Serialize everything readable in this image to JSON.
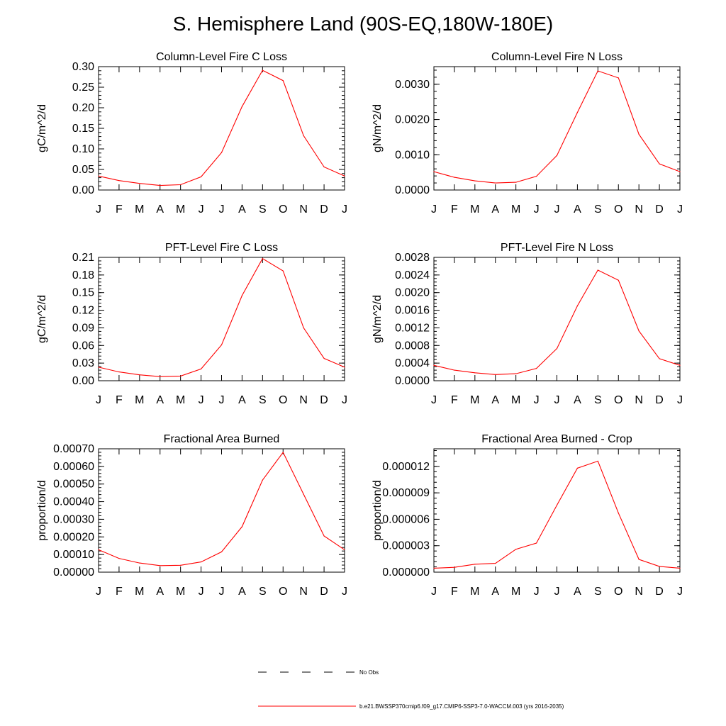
{
  "title": "S. Hemisphere Land (90S-EQ,180W-180E)",
  "colors": {
    "series": "#ff0000",
    "axis": "#000000",
    "obs": "#000000"
  },
  "legend": {
    "entries": [
      {
        "label": "No Obs",
        "style": "dashed",
        "color": "#000000"
      },
      {
        "label": "b.e21.BWSSP370cmip6.f09_g17.CMIP6-SSP3-7.0-WACCM.003 (yrs 2016-2035)",
        "style": "solid",
        "color": "#ff0000"
      }
    ]
  },
  "chart_data": [
    {
      "type": "line",
      "title": "Column-Level Fire C Loss",
      "xlabel": "",
      "ylabel": "gC/m^2/d",
      "categories": [
        "J",
        "F",
        "M",
        "A",
        "M",
        "J",
        "J",
        "A",
        "S",
        "O",
        "N",
        "D",
        "J"
      ],
      "ylim": [
        0,
        0.3
      ],
      "yticks": [
        "0.00",
        "0.05",
        "0.10",
        "0.15",
        "0.20",
        "0.25",
        "0.30"
      ],
      "grid": false,
      "series": [
        {
          "values": [
            0.034,
            0.023,
            0.016,
            0.011,
            0.013,
            0.032,
            0.091,
            0.203,
            0.291,
            0.266,
            0.132,
            0.056,
            0.034
          ]
        }
      ]
    },
    {
      "type": "line",
      "title": "Column-Level Fire N Loss",
      "xlabel": "",
      "ylabel": "gN/m^2/d",
      "categories": [
        "J",
        "F",
        "M",
        "A",
        "M",
        "J",
        "J",
        "A",
        "S",
        "O",
        "N",
        "D",
        "J"
      ],
      "ylim": [
        0,
        0.0035
      ],
      "yticks": [
        "0.0000",
        "0.0010",
        "0.0020",
        "0.0030"
      ],
      "grid": false,
      "series": [
        {
          "values": [
            0.00052,
            0.00036,
            0.00026,
            0.0002,
            0.00022,
            0.00039,
            0.00098,
            0.0022,
            0.00338,
            0.00318,
            0.00158,
            0.00074,
            0.00052
          ]
        }
      ]
    },
    {
      "type": "line",
      "title": "PFT-Level Fire C Loss",
      "xlabel": "",
      "ylabel": "gC/m^2/d",
      "categories": [
        "J",
        "F",
        "M",
        "A",
        "M",
        "J",
        "J",
        "A",
        "S",
        "O",
        "N",
        "D",
        "J"
      ],
      "ylim": [
        0,
        0.21
      ],
      "yticks": [
        "0.00",
        "0.03",
        "0.06",
        "0.09",
        "0.12",
        "0.15",
        "0.18",
        "0.21"
      ],
      "grid": false,
      "series": [
        {
          "values": [
            0.023,
            0.015,
            0.01,
            0.007,
            0.008,
            0.02,
            0.061,
            0.145,
            0.208,
            0.187,
            0.09,
            0.038,
            0.023
          ]
        }
      ]
    },
    {
      "type": "line",
      "title": "PFT-Level Fire N Loss",
      "xlabel": "",
      "ylabel": "gN/m^2/d",
      "categories": [
        "J",
        "F",
        "M",
        "A",
        "M",
        "J",
        "J",
        "A",
        "S",
        "O",
        "N",
        "D",
        "J"
      ],
      "ylim": [
        0,
        0.0028
      ],
      "yticks": [
        "0.0000",
        "0.0004",
        "0.0008",
        "0.0012",
        "0.0016",
        "0.0020",
        "0.0024",
        "0.0028"
      ],
      "grid": false,
      "series": [
        {
          "values": [
            0.00035,
            0.00024,
            0.00018,
            0.00014,
            0.00016,
            0.00028,
            0.00073,
            0.0017,
            0.00251,
            0.00228,
            0.00113,
            0.0005,
            0.00035
          ]
        }
      ]
    },
    {
      "type": "line",
      "title": "Fractional Area Burned",
      "xlabel": "",
      "ylabel": "proportion/d",
      "categories": [
        "J",
        "F",
        "M",
        "A",
        "M",
        "J",
        "J",
        "A",
        "S",
        "O",
        "N",
        "D",
        "J"
      ],
      "ylim": [
        0,
        0.0007
      ],
      "yticks": [
        "0.00000",
        "0.00010",
        "0.00020",
        "0.00030",
        "0.00040",
        "0.00050",
        "0.00060",
        "0.00070"
      ],
      "grid": false,
      "series": [
        {
          "values": [
            0.000127,
            7.8e-05,
            5.2e-05,
            3.7e-05,
            3.9e-05,
            5.8e-05,
            0.000115,
            0.000258,
            0.000522,
            0.00068,
            0.000442,
            0.000205,
            0.000127
          ]
        }
      ]
    },
    {
      "type": "line",
      "title": "Fractional Area Burned - Crop",
      "xlabel": "",
      "ylabel": "proportion/d",
      "categories": [
        "J",
        "F",
        "M",
        "A",
        "M",
        "J",
        "J",
        "A",
        "S",
        "O",
        "N",
        "D",
        "J"
      ],
      "ylim": [
        0,
        1.4e-05
      ],
      "yticks": [
        "0.000000",
        "0.000003",
        "0.000006",
        "0.000009",
        "0.000012"
      ],
      "grid": false,
      "series": [
        {
          "values": [
            4.5e-07,
            5.5e-07,
            9e-07,
            1e-06,
            2.6e-06,
            3.3e-06,
            7.6e-06,
            1.18e-05,
            1.26e-05,
            6.7e-06,
            1.45e-06,
            6.5e-07,
            4.5e-07
          ]
        }
      ]
    }
  ]
}
